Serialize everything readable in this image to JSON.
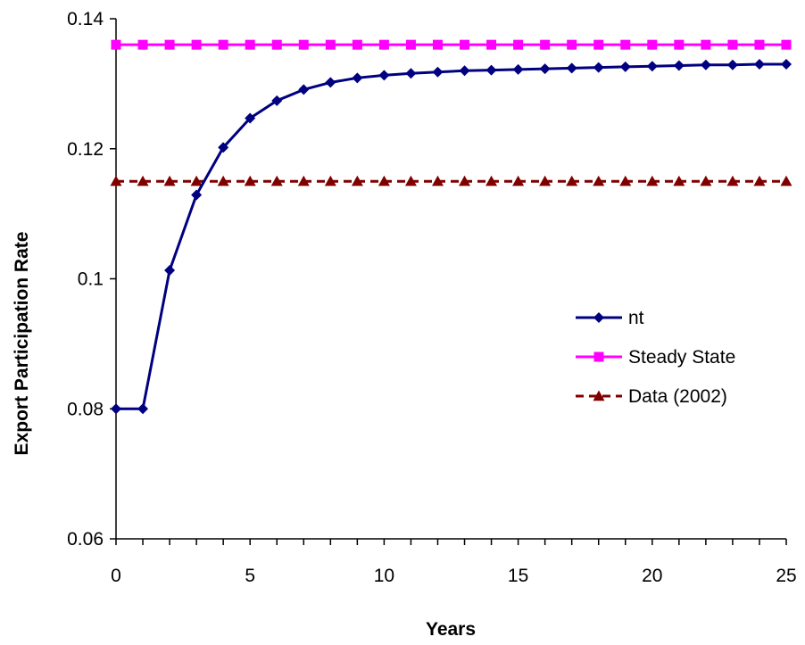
{
  "chart_data": {
    "type": "line",
    "xlabel": "Years",
    "ylabel": "Export Participation Rate",
    "xlim": [
      0,
      25
    ],
    "ylim": [
      0.06,
      0.14
    ],
    "x_ticks": [
      "0",
      "5",
      "10",
      "15",
      "20",
      "25"
    ],
    "y_ticks": [
      "0.06",
      "0.08",
      "0.1",
      "0.12",
      "0.14"
    ],
    "x": [
      0,
      1,
      2,
      3,
      4,
      5,
      6,
      7,
      8,
      9,
      10,
      11,
      12,
      13,
      14,
      15,
      16,
      17,
      18,
      19,
      20,
      21,
      22,
      23,
      24,
      25
    ],
    "grid": false,
    "legend_position": "right",
    "series": [
      {
        "name": "nt",
        "color": "#000080",
        "marker": "diamond",
        "line_style": "solid",
        "values": [
          0.08,
          0.08,
          0.1013,
          0.1129,
          0.1202,
          0.1247,
          0.1274,
          0.1291,
          0.1302,
          0.1309,
          0.1313,
          0.1316,
          0.1318,
          0.132,
          0.1321,
          0.1322,
          0.1323,
          0.1324,
          0.1325,
          0.1326,
          0.1327,
          0.1328,
          0.1329,
          0.1329,
          0.133,
          0.133
        ]
      },
      {
        "name": "Steady State",
        "color": "#FF00FF",
        "marker": "square",
        "line_style": "solid",
        "values": [
          0.136,
          0.136,
          0.136,
          0.136,
          0.136,
          0.136,
          0.136,
          0.136,
          0.136,
          0.136,
          0.136,
          0.136,
          0.136,
          0.136,
          0.136,
          0.136,
          0.136,
          0.136,
          0.136,
          0.136,
          0.136,
          0.136,
          0.136,
          0.136,
          0.136,
          0.136
        ]
      },
      {
        "name": "Data (2002)",
        "color": "#800000",
        "marker": "triangle",
        "line_style": "dashed",
        "values": [
          0.115,
          0.115,
          0.115,
          0.115,
          0.115,
          0.115,
          0.115,
          0.115,
          0.115,
          0.115,
          0.115,
          0.115,
          0.115,
          0.115,
          0.115,
          0.115,
          0.115,
          0.115,
          0.115,
          0.115,
          0.115,
          0.115,
          0.115,
          0.115,
          0.115,
          0.115
        ]
      }
    ]
  }
}
